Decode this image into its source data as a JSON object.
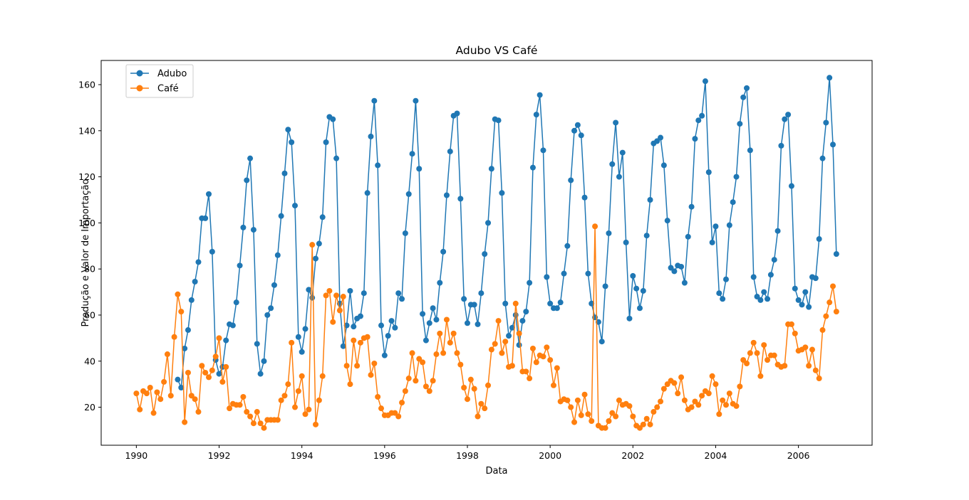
{
  "chart_data": {
    "type": "line",
    "title": "Adubo VS Café",
    "xlabel": "Data",
    "ylabel": "Produção e Valor de Importação",
    "legend_position": "top-left",
    "grid": false,
    "xlim": [
      1989.15,
      2007.78
    ],
    "ylim": [
      3.5,
      170.5
    ],
    "x_ticks": [
      1990,
      1992,
      1994,
      1996,
      1998,
      2000,
      2002,
      2004,
      2006
    ],
    "x_tick_labels": [
      "1990",
      "1992",
      "1994",
      "1996",
      "1998",
      "2000",
      "2002",
      "2004",
      "2006"
    ],
    "y_ticks": [
      20,
      40,
      60,
      80,
      100,
      120,
      140,
      160
    ],
    "y_tick_labels": [
      "20",
      "40",
      "60",
      "80",
      "100",
      "120",
      "140",
      "160"
    ],
    "series": [
      {
        "name": "Adubo",
        "color": "#1f77b4",
        "marker": "circle",
        "x_start": 1991.0,
        "step": 0.0833333,
        "values": [
          32,
          28.5,
          45.5,
          53.5,
          66.5,
          74.5,
          83,
          102,
          102,
          112.5,
          87.5,
          40.5,
          34.5,
          37.5,
          49,
          56,
          55.5,
          65.5,
          81.5,
          98,
          118.5,
          128,
          97,
          47.5,
          34.5,
          40,
          60,
          63,
          73,
          86,
          103,
          121.5,
          140.5,
          135,
          107.5,
          50.5,
          44,
          54,
          71,
          67.5,
          84.5,
          91,
          102.5,
          135,
          146,
          145,
          128,
          65,
          46.5,
          55.5,
          70.5,
          55,
          58.5,
          59.5,
          69.5,
          113,
          137.5,
          153,
          125,
          55.5,
          42.5,
          51,
          57.5,
          54.5,
          69.5,
          67,
          95.5,
          112.5,
          130,
          153,
          123.5,
          60.5,
          49,
          56.5,
          63,
          58,
          74,
          87.5,
          112,
          131,
          146.5,
          147.5,
          110.5,
          67,
          56.5,
          64.5,
          64.5,
          56,
          69.5,
          86.5,
          100,
          123.5,
          145,
          144.5,
          113,
          65,
          51,
          54.5,
          60,
          47,
          57.5,
          61.5,
          74,
          124,
          147,
          155.5,
          131.5,
          76.5,
          65,
          63,
          63,
          65.5,
          78,
          90,
          118.5,
          140,
          142.5,
          138,
          111,
          78,
          65,
          59,
          57,
          48.5,
          72.5,
          95.5,
          125.5,
          143.5,
          120,
          130.5,
          91.5,
          58.5,
          77,
          71.5,
          63,
          70.5,
          94.5,
          110,
          134.5,
          135.5,
          137,
          125,
          101,
          80.5,
          79,
          81.5,
          81,
          74,
          94,
          107,
          136.5,
          144.5,
          146.5,
          161.5,
          122,
          91.5,
          98.5,
          69.5,
          67,
          75.5,
          99,
          109,
          120,
          143,
          154.5,
          158.5,
          131.5,
          76.5,
          68,
          66.5,
          70,
          67,
          77.5,
          84,
          96.5,
          133.5,
          145,
          147,
          116,
          71.5,
          66.5,
          64.5,
          70,
          63.5,
          76.5,
          76,
          93,
          128,
          143.5,
          163,
          134,
          86.5
        ]
      },
      {
        "name": "Café",
        "color": "#ff7f0e",
        "marker": "circle",
        "x_start": 1990.0,
        "step": 0.0833333,
        "values": [
          26,
          19,
          27,
          26,
          28.5,
          17.5,
          26.5,
          23.5,
          31,
          43,
          25,
          50.5,
          69,
          61.5,
          13.5,
          35,
          25,
          23.5,
          18,
          38,
          35,
          33,
          36,
          42,
          50,
          31,
          37.5,
          19.5,
          21.5,
          21,
          21,
          24.5,
          18,
          16,
          13,
          18,
          13,
          11,
          14.5,
          14.5,
          14.5,
          14.5,
          23,
          25,
          30,
          48,
          20,
          27,
          33.5,
          17,
          19,
          90.5,
          12.5,
          23,
          33.5,
          68.5,
          70.5,
          57,
          68.5,
          62,
          68,
          38,
          30,
          49,
          38,
          48,
          50,
          50.5,
          34,
          39,
          24.5,
          19.5,
          16.5,
          16.5,
          17.5,
          17.5,
          16,
          22,
          27,
          32.5,
          43.5,
          31.5,
          41,
          39.5,
          29,
          27,
          31.5,
          43,
          52,
          43.5,
          58,
          48,
          52,
          43.5,
          38.5,
          28.5,
          23.5,
          32,
          28,
          16,
          21.5,
          19.5,
          29.5,
          45,
          47.5,
          57.5,
          43.5,
          48.5,
          37.5,
          38,
          65,
          52,
          35.5,
          35.5,
          32.5,
          45.5,
          39.5,
          42.5,
          42,
          46,
          40.5,
          29.5,
          37,
          22.5,
          23.5,
          23,
          20,
          13.5,
          23,
          16.5,
          25.5,
          17,
          14,
          98.5,
          12,
          11,
          11,
          14,
          17.5,
          16,
          23,
          21,
          21.5,
          20.5,
          16,
          12,
          11,
          12.5,
          15,
          12.5,
          18,
          20,
          22.5,
          28,
          30,
          31.5,
          30.5,
          26,
          33,
          23,
          19,
          20,
          22.5,
          21,
          25,
          27,
          26,
          33.5,
          30,
          17,
          23,
          21,
          26,
          21.5,
          20.5,
          29,
          40.5,
          39,
          43.5,
          48,
          43.5,
          33.5,
          47,
          40.5,
          42.5,
          42.5,
          38.5,
          37.5,
          38,
          56,
          56,
          52,
          44.5,
          45,
          46,
          38,
          45,
          36,
          32.5,
          53.5,
          59.5,
          65.5,
          72.5,
          61.5
        ]
      }
    ]
  }
}
